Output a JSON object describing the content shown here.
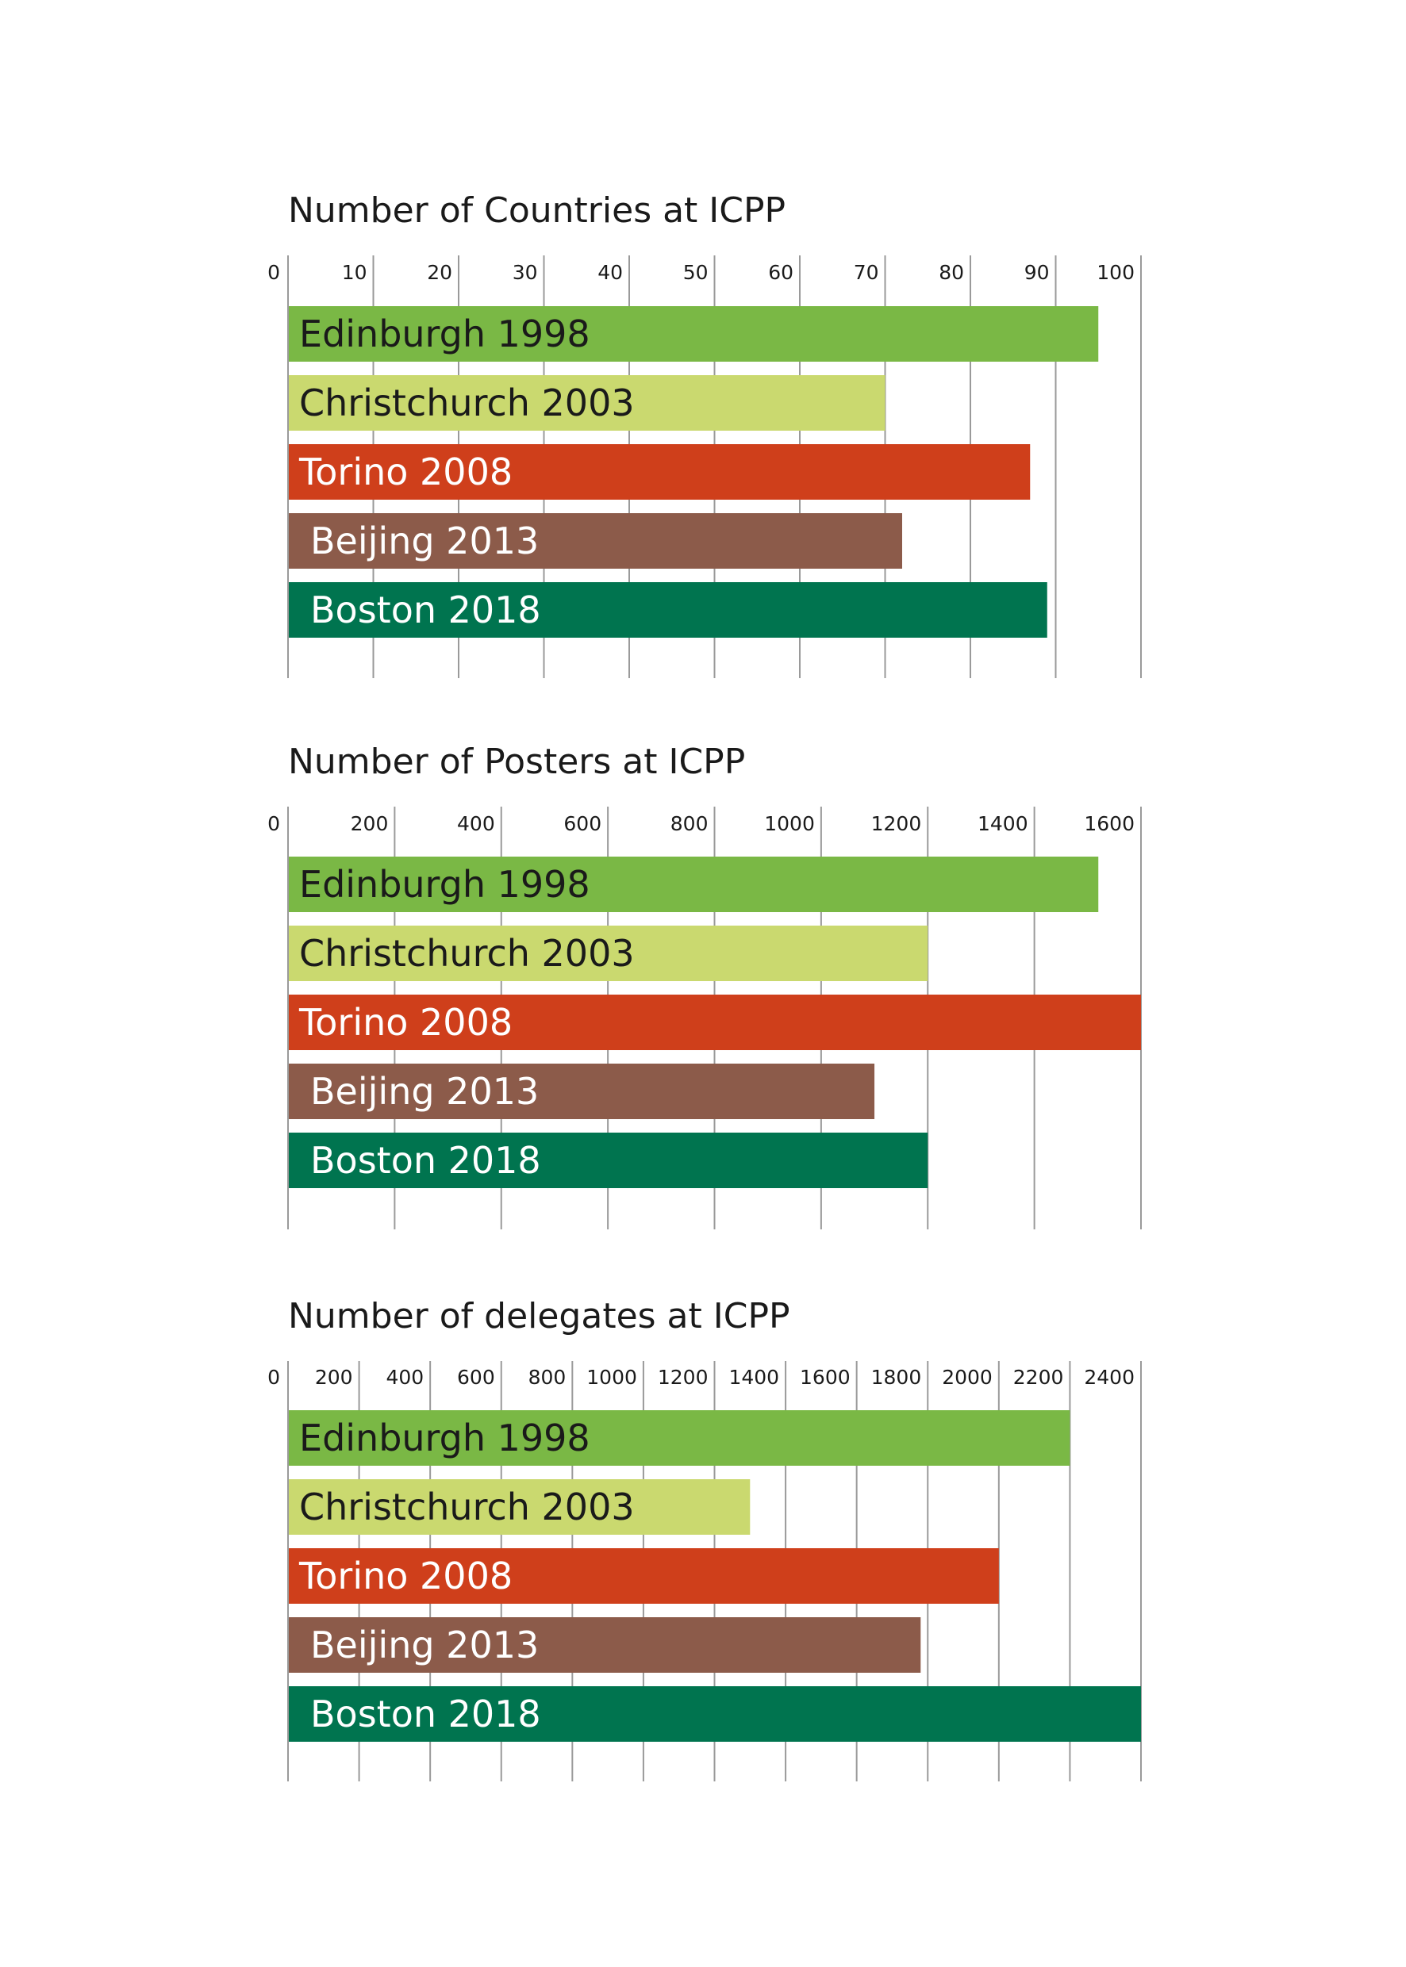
{
  "colors": {
    "edinburgh": "#7ab845",
    "christchurch": "#cad96f",
    "torino": "#cf3f1b",
    "beijing": "#8c5b4a",
    "boston": "#00744f",
    "dark_text": "#1a1a1a",
    "light_text": "#ffffff"
  },
  "chart_data": [
    {
      "type": "bar",
      "orientation": "horizontal",
      "title": "Number of Countries at ICPP",
      "categories": [
        "Edinburgh 1998",
        "Christchurch 2003",
        "Torino 2008",
        "Beijing 2013",
        "Boston 2018"
      ],
      "values": [
        95,
        70,
        87,
        72,
        89
      ],
      "xlim": [
        0,
        100
      ],
      "ticks": [
        0,
        10,
        20,
        30,
        40,
        50,
        60,
        70,
        80,
        90,
        100
      ],
      "grid": true
    },
    {
      "type": "bar",
      "orientation": "horizontal",
      "title": "Number of Posters at ICPP",
      "categories": [
        "Edinburgh 1998",
        "Christchurch 2003",
        "Torino 2008",
        "Beijing 2013",
        "Boston 2018"
      ],
      "values": [
        1520,
        1200,
        1600,
        1100,
        1200
      ],
      "xlim": [
        0,
        1600
      ],
      "ticks": [
        0,
        200,
        400,
        600,
        800,
        1000,
        1200,
        1400,
        1600
      ],
      "grid": true
    },
    {
      "type": "bar",
      "orientation": "horizontal",
      "title": "Number of delegates at ICPP",
      "categories": [
        "Edinburgh 1998",
        "Christchurch 2003",
        "Torino 2008",
        "Beijing 2013",
        "Boston 2018"
      ],
      "values": [
        2200,
        1300,
        2000,
        1780,
        2400
      ],
      "xlim": [
        0,
        2400
      ],
      "ticks": [
        0,
        200,
        400,
        600,
        800,
        1000,
        1200,
        1400,
        1600,
        1800,
        2000,
        2200,
        2400
      ],
      "grid": true
    }
  ]
}
